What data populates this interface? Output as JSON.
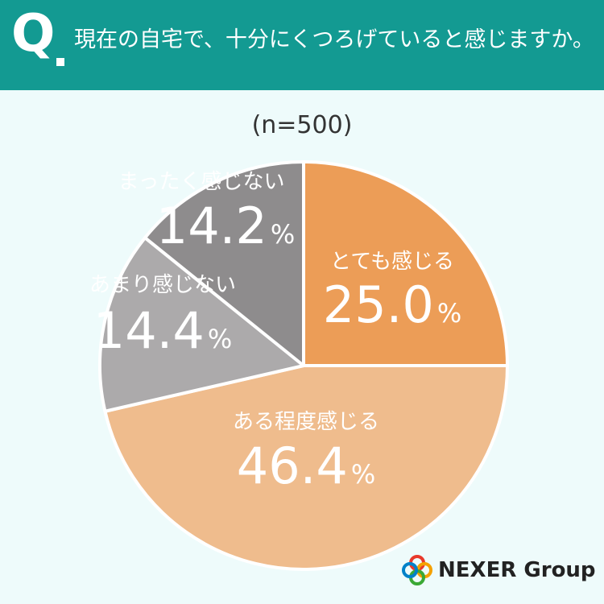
{
  "header": {
    "q_mark": "Q",
    "question": "現在の自宅で、十分にくつろげていると感じますか。"
  },
  "sample_size": "(n=500)",
  "chart_data": {
    "type": "pie",
    "slices": [
      {
        "label": "とても感じる",
        "value": 25.0,
        "display": "25.0",
        "color": "#ec9d57"
      },
      {
        "label": "ある程度感じる",
        "value": 46.4,
        "display": "46.4",
        "color": "#efbc8d"
      },
      {
        "label": "あまり感じない",
        "value": 14.4,
        "display": "14.4",
        "color": "#acaaab"
      },
      {
        "label": "まったく感じない",
        "value": 14.2,
        "display": "14.2",
        "color": "#8e8c8d"
      }
    ],
    "unit": "%",
    "start": "12 o'clock",
    "direction": "clockwise"
  },
  "logo": {
    "text": "NEXER Group",
    "colors": [
      "#e8392b",
      "#f5a100",
      "#3aa935",
      "#0081c8"
    ]
  }
}
